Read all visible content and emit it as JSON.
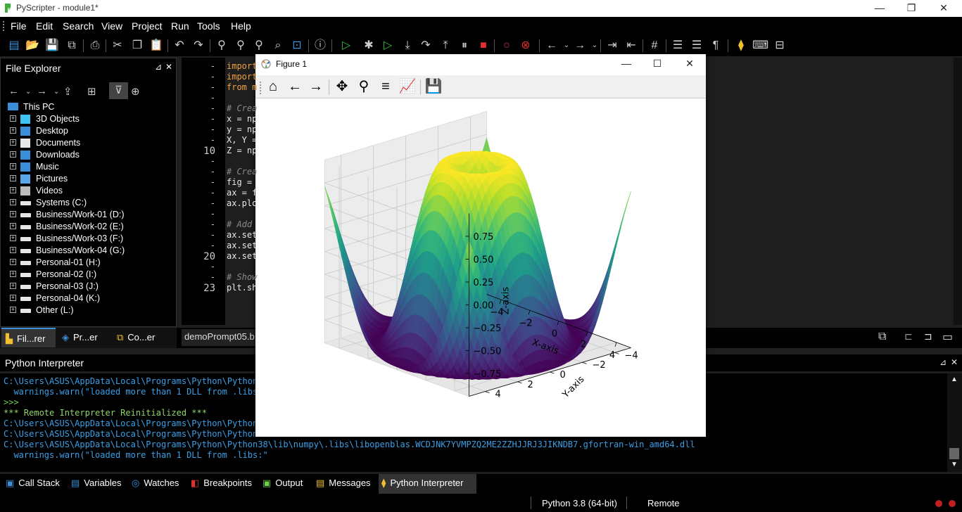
{
  "window": {
    "title": "PyScripter - module1*",
    "minimize": "—",
    "restore": "❐",
    "close": "✕"
  },
  "menu": [
    "File",
    "Edit",
    "Search",
    "View",
    "Project",
    "Run",
    "Tools",
    "Help"
  ],
  "file_explorer": {
    "title": "File Explorer",
    "pin": "⊿",
    "close": "✕",
    "root": "This PC",
    "items": [
      {
        "label": "3D Objects",
        "icon": "cube-icon",
        "color": "#3cc3f0"
      },
      {
        "label": "Desktop",
        "icon": "desktop-icon",
        "color": "#3a8fd8"
      },
      {
        "label": "Documents",
        "icon": "document-icon",
        "color": "#e8e8e8"
      },
      {
        "label": "Downloads",
        "icon": "download-icon",
        "color": "#3a8fd8"
      },
      {
        "label": "Music",
        "icon": "music-icon",
        "color": "#3a8fd8"
      },
      {
        "label": "Pictures",
        "icon": "picture-icon",
        "color": "#5aa6e8"
      },
      {
        "label": "Videos",
        "icon": "video-icon",
        "color": "#bbbbbb"
      },
      {
        "label": "Systems (C:)",
        "icon": "drive-icon",
        "color": "#e6e6e6"
      },
      {
        "label": "Business/Work-01 (D:)",
        "icon": "drive-icon",
        "color": "#e6e6e6"
      },
      {
        "label": "Business/Work-02 (E:)",
        "icon": "drive-icon",
        "color": "#e6e6e6"
      },
      {
        "label": "Business/Work-03 (F:)",
        "icon": "drive-icon",
        "color": "#e6e6e6"
      },
      {
        "label": "Business/Work-04 (G:)",
        "icon": "drive-icon",
        "color": "#e6e6e6"
      },
      {
        "label": "Personal-01 (H:)",
        "icon": "drive-icon",
        "color": "#e6e6e6"
      },
      {
        "label": "Personal-02 (I:)",
        "icon": "drive-icon",
        "color": "#e6e6e6"
      },
      {
        "label": "Personal-03 (J:)",
        "icon": "drive-icon",
        "color": "#e6e6e6"
      },
      {
        "label": "Personal-04 (K:)",
        "icon": "drive-icon",
        "color": "#e6e6e6"
      },
      {
        "label": "Other (L:)",
        "icon": "drive-icon",
        "color": "#e6e6e6"
      }
    ],
    "tabs": [
      "Fil...rer",
      "Pr...er",
      "Co...er"
    ]
  },
  "editor": {
    "tab": "demoPrompt05.b",
    "gutter": [
      "-",
      "-",
      "-",
      "-",
      "-",
      "-",
      "-",
      "-",
      "10",
      "-",
      "-",
      "-",
      "-",
      "-",
      "-",
      "-",
      "-",
      "-",
      "20",
      "-",
      "-",
      "23"
    ],
    "lines": [
      {
        "text": "import",
        "kind": "kw"
      },
      {
        "text": "import",
        "kind": "kw"
      },
      {
        "text": "from m",
        "kind": "kw"
      },
      {
        "text": "",
        "kind": "plain"
      },
      {
        "text": "# Crea",
        "kind": "comment"
      },
      {
        "text": "x = np",
        "kind": "plain"
      },
      {
        "text": "y = np",
        "kind": "plain"
      },
      {
        "text": "X, Y =",
        "kind": "plain"
      },
      {
        "text": "Z = np",
        "kind": "plain"
      },
      {
        "text": "",
        "kind": "plain"
      },
      {
        "text": "# Crea",
        "kind": "comment"
      },
      {
        "text": "fig =",
        "kind": "plain"
      },
      {
        "text": "ax = f",
        "kind": "plain"
      },
      {
        "text": "ax.plo",
        "kind": "plain"
      },
      {
        "text": "",
        "kind": "plain"
      },
      {
        "text": "# Add",
        "kind": "comment"
      },
      {
        "text": "ax.set",
        "kind": "plain"
      },
      {
        "text": "ax.set",
        "kind": "plain"
      },
      {
        "text": "ax.set",
        "kind": "plain"
      },
      {
        "text": "",
        "kind": "plain"
      },
      {
        "text": "# Show",
        "kind": "comment"
      },
      {
        "text": "plt.sh",
        "kind": "plain"
      }
    ]
  },
  "interpreter": {
    "title": "Python Interpreter",
    "lines": [
      {
        "text": "C:\\Users\\ASUS\\AppData\\Local\\Programs\\Python\\Python3",
        "color": "#3aa0e8"
      },
      {
        "text": "  warnings.warn(\"loaded more than 1 DLL from .libs:",
        "color": "#3aa0e8"
      },
      {
        "text": ">>>",
        "color": "#6fcf4f"
      },
      {
        "text": "*** Remote Interpreter Reinitialized ***",
        "color": "#8fd46a"
      },
      {
        "text": "C:\\Users\\ASUS\\AppData\\Local\\Programs\\Python\\Python3",
        "color": "#3aa0e8"
      },
      {
        "text": "C:\\Users\\ASUS\\AppData\\Local\\Programs\\Python\\Python3",
        "color": "#3aa0e8"
      },
      {
        "text": "C:\\Users\\ASUS\\AppData\\Local\\Programs\\Python\\Python38\\lib\\numpy\\.libs\\libopenblas.WCDJNK7YVMPZQ2ME2ZZHJJRJ3JIKNDB7.gfortran-win_amd64.dll",
        "color": "#3aa0e8"
      },
      {
        "text": "  warnings.warn(\"loaded more than 1 DLL from .libs:\"",
        "color": "#3aa0e8"
      }
    ]
  },
  "bottom_tabs": [
    "Call Stack",
    "Variables",
    "Watches",
    "Breakpoints",
    "Output",
    "Messages",
    "Python Interpreter"
  ],
  "status": {
    "python": "Python 3.8 (64-bit)",
    "remote": "Remote"
  },
  "figure": {
    "title": "Figure 1",
    "toolbar_icons": [
      "home-icon",
      "back-icon",
      "forward-icon",
      "pan-icon",
      "zoom-icon",
      "configure-icon",
      "edit-icon",
      "save-icon"
    ],
    "minimize": "—",
    "maximize": "☐",
    "close": "✕"
  },
  "chart_data": {
    "type": "surface3d",
    "title": "",
    "xlabel": "X-axis",
    "ylabel": "Y-axis",
    "zlabel": "Z-axis",
    "x_ticks": [
      "−4",
      "−2",
      "0",
      "2",
      "4"
    ],
    "y_ticks": [
      "−4",
      "−2",
      "0",
      "2",
      "4"
    ],
    "z_ticks": [
      "−0.75",
      "−0.50",
      "−0.25",
      "0.00",
      "0.25",
      "0.50",
      "0.75"
    ],
    "xlim": [
      -5,
      5
    ],
    "ylim": [
      -5,
      5
    ],
    "zlim": [
      -1,
      1
    ],
    "function": "sin(sqrt(x^2 + y^2))",
    "colormap": "viridis"
  }
}
